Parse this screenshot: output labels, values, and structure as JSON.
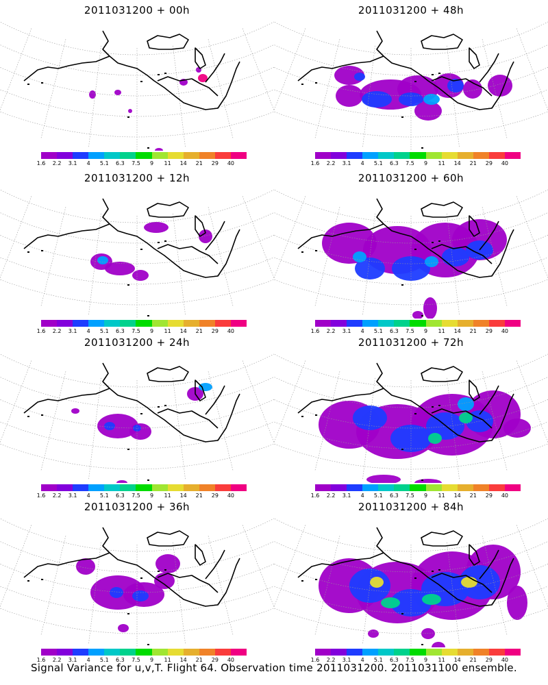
{
  "panels": [
    {
      "title": "2011031200 + 00h"
    },
    {
      "title": "2011031200 + 48h"
    },
    {
      "title": "2011031200 + 12h"
    },
    {
      "title": "2011031200 + 60h"
    },
    {
      "title": "2011031200 + 24h"
    },
    {
      "title": "2011031200 + 72h"
    },
    {
      "title": "2011031200 + 36h"
    },
    {
      "title": "2011031200 + 84h"
    }
  ],
  "colorbar": {
    "colors": [
      "#a000c8",
      "#8200dc",
      "#1e3cff",
      "#00a0ff",
      "#00c8c8",
      "#00d28c",
      "#00dc00",
      "#a0e632",
      "#e6dc32",
      "#e6af2d",
      "#f08228",
      "#fa3c3c",
      "#f00082"
    ],
    "ticks": [
      "1.6",
      "2.2",
      "3.1",
      "4",
      "5.1",
      "6.3",
      "7.5",
      "9",
      "11",
      "14",
      "21",
      "29",
      "40"
    ]
  },
  "footer": "Signal Variance for u,v,T. Flight 64. Observation time 2011031200. 2011031100 ensemble."
}
